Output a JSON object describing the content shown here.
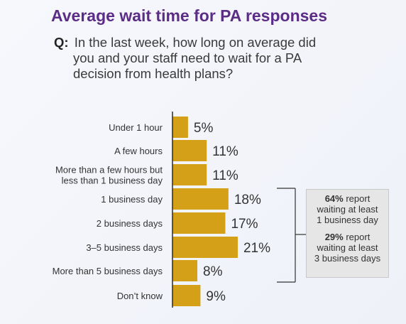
{
  "title": "Average wait time for PA responses",
  "question": {
    "prefix": "Q:",
    "line1": "In the last week, how long on average did",
    "line2": "you and your staff need to wait for a PA",
    "line3": "decision from health plans?"
  },
  "chart_data": {
    "type": "bar",
    "orientation": "horizontal",
    "categories": [
      [
        "Under 1 hour"
      ],
      [
        "A few hours"
      ],
      [
        "More than a few hours but",
        "less than 1 business day"
      ],
      [
        "1 business day"
      ],
      [
        "2 business days"
      ],
      [
        "3–5 business days"
      ],
      [
        "More than 5 business days"
      ],
      [
        "Don’t know"
      ]
    ],
    "values": [
      5,
      11,
      11,
      18,
      17,
      21,
      8,
      9
    ],
    "value_labels": [
      "5%",
      "11%",
      "11%",
      "18%",
      "17%",
      "21%",
      "8%",
      "9%"
    ],
    "bar_color": "#d4a017",
    "xlim": [
      0,
      25
    ]
  },
  "callout": {
    "stat1_value": "64%",
    "stat1_text_a": "report",
    "stat1_text_b": "waiting at least",
    "stat1_text_c": "1 business day",
    "stat2_value": "29%",
    "stat2_text_a": "report",
    "stat2_text_b": "waiting at least",
    "stat2_text_c": "3 business days"
  },
  "colors": {
    "title": "#5b2d86",
    "bar": "#d4a017",
    "axis": "#2b2b2b"
  }
}
